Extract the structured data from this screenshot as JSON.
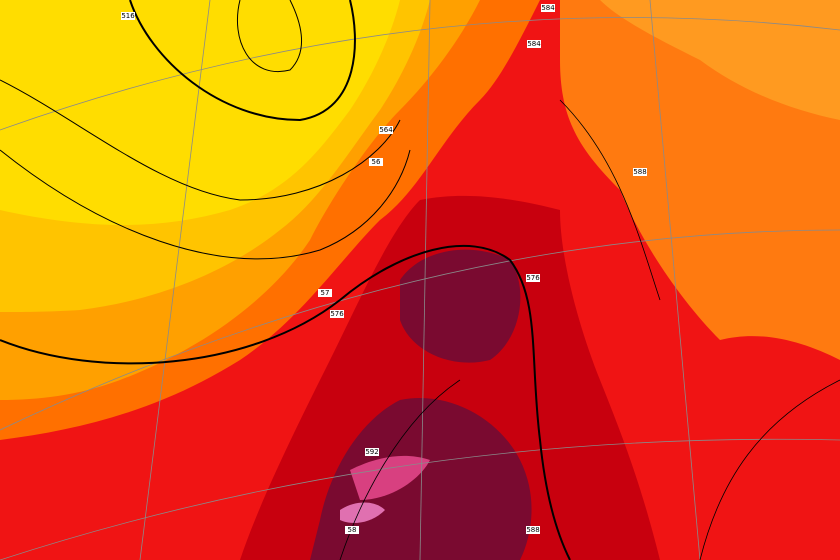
{
  "contour_labels": [
    "516",
    "564",
    "56",
    "576",
    "57",
    "584",
    "584",
    "576",
    "588",
    "588",
    "58",
    "592"
  ]
}
